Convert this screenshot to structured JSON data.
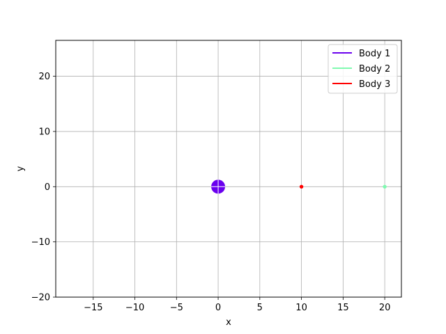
{
  "chart_data": {
    "type": "scatter",
    "title": "",
    "xlabel": "x",
    "ylabel": "y",
    "xlim": [
      -19.5,
      22
    ],
    "ylim": [
      -20,
      26.5
    ],
    "xticks": [
      -15,
      -10,
      -5,
      0,
      5,
      10,
      15,
      20
    ],
    "yticks": [
      -20,
      -10,
      0,
      10,
      20
    ],
    "xtick_labels": [
      "−15",
      "−10",
      "−5",
      "0",
      "5",
      "10",
      "15",
      "20"
    ],
    "ytick_labels": [
      "−20",
      "−10",
      "0",
      "10",
      "20"
    ],
    "grid": true,
    "legend_position": "top-right",
    "series": [
      {
        "name": "Body 1",
        "color": "#6a00ee",
        "x": [
          0
        ],
        "y": [
          0
        ],
        "marker": "large-circle"
      },
      {
        "name": "Body 2",
        "color": "#7ffab0",
        "x": [
          20
        ],
        "y": [
          0
        ],
        "marker": "small-dot"
      },
      {
        "name": "Body 3",
        "color": "#ff0000",
        "x": [
          10
        ],
        "y": [
          0
        ],
        "marker": "small-dot"
      }
    ]
  }
}
